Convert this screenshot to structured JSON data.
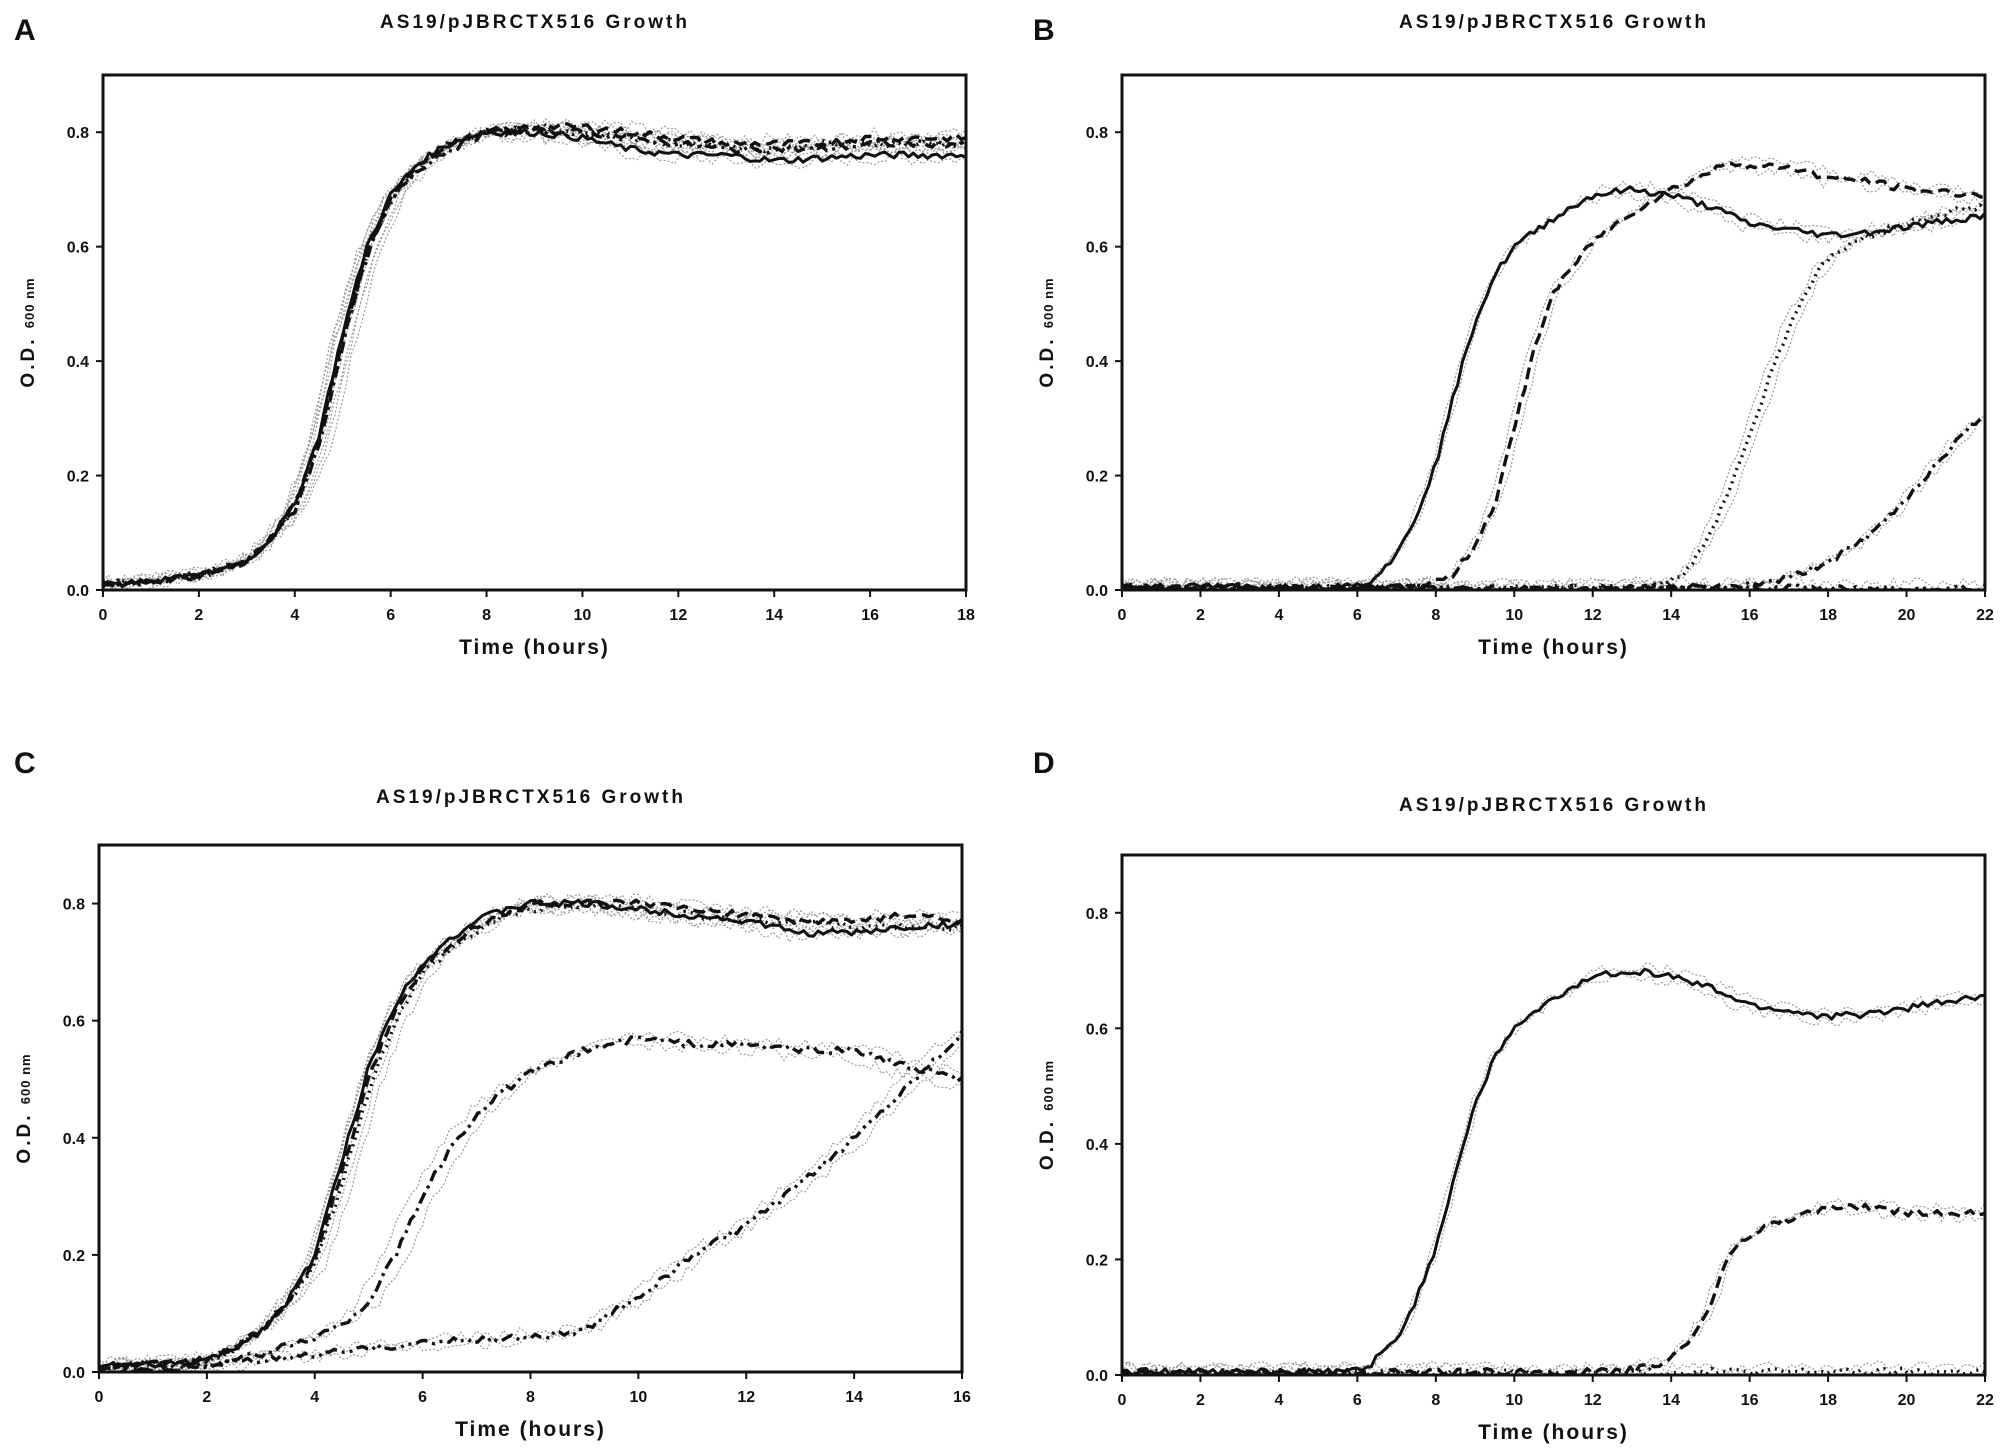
{
  "figure": {
    "panels": [
      "A",
      "B",
      "C",
      "D"
    ]
  },
  "chart_data": [
    {
      "panel": "A",
      "type": "line",
      "title": "AS19/pJBRCTX516 Growth",
      "xlabel": "Time (hours)",
      "ylabel": "O.D.",
      "ylabel_sub": "600 nm",
      "xlim": [
        0,
        18
      ],
      "ylim": [
        0,
        0.9
      ],
      "xticks": [
        0,
        2,
        4,
        6,
        8,
        10,
        12,
        14,
        16,
        18
      ],
      "yticks": [
        0.0,
        0.2,
        0.4,
        0.6,
        0.8
      ],
      "ytick_labels": [
        "0.0",
        "0.2",
        "0.4",
        "0.6",
        "0.8"
      ],
      "series": [
        {
          "name": "solid",
          "style": "solid",
          "x": [
            0,
            1,
            2,
            3,
            3.5,
            4,
            4.5,
            5,
            5.5,
            6,
            6.5,
            7,
            7.5,
            8,
            9,
            10,
            11,
            12,
            13,
            14,
            15,
            16,
            17,
            18
          ],
          "y": [
            0.01,
            0.015,
            0.025,
            0.05,
            0.09,
            0.15,
            0.27,
            0.45,
            0.6,
            0.69,
            0.74,
            0.77,
            0.79,
            0.8,
            0.8,
            0.79,
            0.77,
            0.76,
            0.76,
            0.75,
            0.755,
            0.76,
            0.76,
            0.76
          ]
        },
        {
          "name": "dashed",
          "style": "dashed",
          "x": [
            0,
            1,
            2,
            3,
            3.5,
            4,
            4.5,
            5,
            5.5,
            6,
            6.5,
            7,
            7.5,
            8,
            9,
            10,
            11,
            12,
            13,
            14,
            15,
            16,
            17,
            18
          ],
          "y": [
            0.01,
            0.015,
            0.025,
            0.05,
            0.09,
            0.15,
            0.26,
            0.44,
            0.59,
            0.68,
            0.74,
            0.77,
            0.79,
            0.8,
            0.81,
            0.81,
            0.8,
            0.79,
            0.78,
            0.78,
            0.78,
            0.79,
            0.79,
            0.79
          ]
        },
        {
          "name": "dotted",
          "style": "dotted",
          "x": [
            0,
            1,
            2,
            3,
            3.5,
            4,
            4.5,
            5,
            5.5,
            6,
            6.5,
            7,
            7.5,
            8,
            9,
            10,
            11,
            12,
            13,
            14,
            15,
            16,
            17,
            18
          ],
          "y": [
            0.01,
            0.015,
            0.025,
            0.05,
            0.09,
            0.14,
            0.26,
            0.44,
            0.59,
            0.68,
            0.73,
            0.77,
            0.79,
            0.8,
            0.81,
            0.8,
            0.79,
            0.78,
            0.78,
            0.77,
            0.78,
            0.78,
            0.78,
            0.78
          ]
        },
        {
          "name": "dash-dot",
          "style": "dashdot",
          "x": [
            0,
            1,
            2,
            3,
            3.5,
            4,
            4.5,
            5,
            5.5,
            6,
            6.5,
            7,
            7.5,
            8,
            9,
            10,
            11,
            12,
            13,
            14,
            15,
            16,
            17,
            18
          ],
          "y": [
            0.01,
            0.015,
            0.025,
            0.05,
            0.09,
            0.14,
            0.25,
            0.43,
            0.58,
            0.68,
            0.73,
            0.76,
            0.78,
            0.8,
            0.8,
            0.8,
            0.79,
            0.78,
            0.77,
            0.77,
            0.77,
            0.78,
            0.78,
            0.78
          ]
        }
      ]
    },
    {
      "panel": "B",
      "type": "line",
      "title": "AS19/pJBRCTX516 Growth",
      "xlabel": "Time (hours)",
      "ylabel": "O.D.",
      "ylabel_sub": "600 nm",
      "xlim": [
        0,
        22
      ],
      "ylim": [
        0,
        0.9
      ],
      "xticks": [
        0,
        2,
        4,
        6,
        8,
        10,
        12,
        14,
        16,
        18,
        20,
        22
      ],
      "yticks": [
        0.0,
        0.2,
        0.4,
        0.6,
        0.8
      ],
      "ytick_labels": [
        "0.0",
        "0.2",
        "0.4",
        "0.6",
        "0.8"
      ],
      "series": [
        {
          "name": "solid",
          "style": "solid",
          "x": [
            0,
            2,
            4,
            5.5,
            6.2,
            7,
            7.5,
            8,
            8.5,
            9,
            9.5,
            10,
            11,
            12,
            13,
            14,
            15,
            16,
            17,
            18,
            19,
            20,
            21,
            22
          ],
          "y": [
            0.005,
            0.005,
            0.005,
            0.005,
            0.01,
            0.06,
            0.13,
            0.22,
            0.35,
            0.47,
            0.55,
            0.6,
            0.65,
            0.69,
            0.7,
            0.69,
            0.67,
            0.64,
            0.63,
            0.62,
            0.625,
            0.635,
            0.645,
            0.655
          ]
        },
        {
          "name": "dashed",
          "style": "dashed",
          "x": [
            0,
            2,
            4,
            6,
            7,
            8,
            8.5,
            9,
            9.5,
            10,
            10.5,
            11,
            12,
            13,
            14,
            15,
            15.5,
            16,
            17,
            18,
            19,
            20,
            21,
            22
          ],
          "y": [
            0.005,
            0.005,
            0.005,
            0.005,
            0.006,
            0.012,
            0.03,
            0.08,
            0.15,
            0.28,
            0.42,
            0.52,
            0.61,
            0.66,
            0.7,
            0.73,
            0.75,
            0.74,
            0.74,
            0.72,
            0.715,
            0.7,
            0.695,
            0.69
          ]
        },
        {
          "name": "dotted",
          "style": "dotted",
          "x": [
            0,
            4,
            8,
            12,
            13,
            14,
            14.5,
            15,
            15.5,
            16,
            16.5,
            17,
            17.5,
            18,
            19,
            20,
            21,
            22
          ],
          "y": [
            0.003,
            0.003,
            0.003,
            0.003,
            0.005,
            0.015,
            0.04,
            0.1,
            0.18,
            0.27,
            0.37,
            0.46,
            0.53,
            0.58,
            0.62,
            0.64,
            0.66,
            0.67
          ]
        },
        {
          "name": "dash-dot",
          "style": "dashdot",
          "x": [
            0,
            4,
            8,
            12,
            14,
            15,
            16,
            17,
            18,
            19,
            20,
            21,
            22
          ],
          "y": [
            0.003,
            0.003,
            0.003,
            0.003,
            0.004,
            0.005,
            0.01,
            0.02,
            0.05,
            0.09,
            0.16,
            0.24,
            0.31
          ]
        },
        {
          "name": "flat",
          "style": "dashdotdot",
          "x": [
            0,
            6,
            12,
            18,
            22
          ],
          "y": [
            0.003,
            0.003,
            0.003,
            0.003,
            0.003
          ]
        }
      ]
    },
    {
      "panel": "C",
      "type": "line",
      "title": "AS19/pJBRCTX516 Growth",
      "xlabel": "Time (hours)",
      "ylabel": "O.D.",
      "ylabel_sub": "600 nm",
      "xlim": [
        0,
        16
      ],
      "ylim": [
        0,
        0.9
      ],
      "xticks": [
        0,
        2,
        4,
        6,
        8,
        10,
        12,
        14,
        16
      ],
      "yticks": [
        0.0,
        0.2,
        0.4,
        0.6,
        0.8
      ],
      "ytick_labels": [
        "0.0",
        "0.2",
        "0.4",
        "0.6",
        "0.8"
      ],
      "series": [
        {
          "name": "solid",
          "style": "solid",
          "x": [
            0,
            1,
            2,
            2.5,
            3,
            3.5,
            4,
            4.5,
            5,
            5.5,
            6,
            6.5,
            7,
            7.5,
            8,
            9,
            10,
            11,
            12,
            13,
            14,
            15,
            16
          ],
          "y": [
            0.01,
            0.012,
            0.02,
            0.04,
            0.07,
            0.12,
            0.2,
            0.36,
            0.52,
            0.63,
            0.7,
            0.74,
            0.77,
            0.79,
            0.8,
            0.8,
            0.79,
            0.78,
            0.77,
            0.75,
            0.75,
            0.76,
            0.765
          ]
        },
        {
          "name": "dashed",
          "style": "dashed",
          "x": [
            0,
            1,
            2,
            2.5,
            3,
            3.5,
            4,
            4.5,
            5,
            5.5,
            6,
            6.5,
            7,
            7.5,
            8,
            9,
            10,
            11,
            12,
            13,
            14,
            15,
            16
          ],
          "y": [
            0.01,
            0.012,
            0.02,
            0.04,
            0.07,
            0.12,
            0.19,
            0.34,
            0.5,
            0.62,
            0.69,
            0.73,
            0.76,
            0.78,
            0.8,
            0.8,
            0.8,
            0.79,
            0.78,
            0.77,
            0.77,
            0.78,
            0.77
          ]
        },
        {
          "name": "dotted",
          "style": "dotted",
          "x": [
            0,
            1,
            2,
            2.5,
            3,
            3.5,
            4,
            4.5,
            5,
            5.5,
            6,
            6.5,
            7,
            7.5,
            8,
            9,
            10,
            11,
            12,
            13,
            14,
            15,
            16
          ],
          "y": [
            0.01,
            0.012,
            0.02,
            0.04,
            0.07,
            0.12,
            0.18,
            0.32,
            0.48,
            0.6,
            0.68,
            0.72,
            0.75,
            0.78,
            0.79,
            0.8,
            0.79,
            0.78,
            0.77,
            0.77,
            0.76,
            0.76,
            0.76
          ]
        },
        {
          "name": "dash-dot",
          "style": "dashdot",
          "x": [
            0,
            1,
            2,
            3,
            4,
            4.5,
            5,
            5.5,
            6,
            6.5,
            7,
            7.5,
            8,
            9,
            10,
            11,
            12,
            13,
            14,
            15,
            16
          ],
          "y": [
            0.005,
            0.005,
            0.01,
            0.03,
            0.06,
            0.08,
            0.12,
            0.2,
            0.3,
            0.38,
            0.44,
            0.48,
            0.51,
            0.55,
            0.57,
            0.56,
            0.56,
            0.55,
            0.55,
            0.52,
            0.5
          ]
        },
        {
          "name": "dash-dot-dot",
          "style": "dashdotdot",
          "x": [
            0,
            1,
            2,
            3,
            4,
            5,
            6,
            7,
            8,
            9,
            9.5,
            10,
            10.5,
            11,
            12,
            13,
            14,
            15,
            16
          ],
          "y": [
            0.005,
            0.005,
            0.01,
            0.02,
            0.03,
            0.04,
            0.05,
            0.055,
            0.06,
            0.07,
            0.1,
            0.13,
            0.16,
            0.2,
            0.25,
            0.32,
            0.4,
            0.49,
            0.58
          ]
        }
      ]
    },
    {
      "panel": "D",
      "type": "line",
      "title": "AS19/pJBRCTX516 Growth",
      "xlabel": "Time (hours)",
      "ylabel": "O.D.",
      "ylabel_sub": "600 nm",
      "xlim": [
        0,
        22
      ],
      "ylim": [
        0,
        0.9
      ],
      "xticks": [
        0,
        2,
        4,
        6,
        8,
        10,
        12,
        14,
        16,
        18,
        20,
        22
      ],
      "yticks": [
        0.0,
        0.2,
        0.4,
        0.6,
        0.8
      ],
      "ytick_labels": [
        "0.0",
        "0.2",
        "0.4",
        "0.6",
        "0.8"
      ],
      "series": [
        {
          "name": "solid",
          "style": "solid",
          "x": [
            0,
            2,
            4,
            5.5,
            6.2,
            7,
            7.5,
            8,
            8.5,
            9,
            9.5,
            10,
            11,
            12,
            13,
            14,
            15,
            16,
            17,
            18,
            19,
            20,
            21,
            22
          ],
          "y": [
            0.005,
            0.005,
            0.005,
            0.005,
            0.01,
            0.06,
            0.13,
            0.22,
            0.35,
            0.47,
            0.55,
            0.6,
            0.65,
            0.69,
            0.7,
            0.69,
            0.67,
            0.64,
            0.63,
            0.62,
            0.625,
            0.635,
            0.645,
            0.655
          ]
        },
        {
          "name": "dashed",
          "style": "dashed",
          "x": [
            0,
            4,
            8,
            12,
            13,
            13.5,
            14,
            14.5,
            15,
            15.3,
            15.6,
            16,
            16.5,
            17,
            18,
            19,
            20,
            21,
            22
          ],
          "y": [
            0.005,
            0.005,
            0.005,
            0.005,
            0.008,
            0.015,
            0.03,
            0.06,
            0.12,
            0.18,
            0.22,
            0.24,
            0.26,
            0.27,
            0.29,
            0.29,
            0.28,
            0.28,
            0.28
          ]
        },
        {
          "name": "dotted",
          "style": "dotted",
          "x": [
            0,
            4,
            8,
            12,
            16,
            20,
            22
          ],
          "y": [
            0.004,
            0.004,
            0.004,
            0.004,
            0.006,
            0.006,
            0.006
          ]
        }
      ]
    }
  ]
}
